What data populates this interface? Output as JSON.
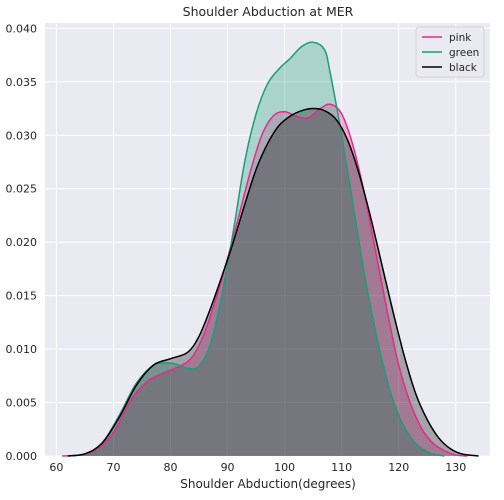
{
  "chart_data": {
    "type": "area",
    "title": "Shoulder Abduction at MER",
    "xlabel": "Shoulder Abduction(degrees)",
    "ylabel": "",
    "xlim": [
      58,
      136
    ],
    "ylim": [
      0,
      0.0405
    ],
    "xticks": [
      60,
      70,
      80,
      90,
      100,
      110,
      120,
      130
    ],
    "xtick_labels": [
      "60",
      "70",
      "80",
      "90",
      "100",
      "110",
      "120",
      "130"
    ],
    "yticks": [
      0,
      0.005,
      0.01,
      0.015,
      0.02,
      0.025,
      0.03,
      0.035,
      0.04
    ],
    "ytick_labels": [
      "0.000",
      "0.005",
      "0.010",
      "0.015",
      "0.020",
      "0.025",
      "0.030",
      "0.035",
      "0.040"
    ],
    "grid": true,
    "legend_position": "top-right",
    "background_color": "#eaeaf2",
    "series": [
      {
        "name": "pink",
        "color": "#e7298a",
        "points": [
          [
            61,
            0.0
          ],
          [
            64,
            0.0001
          ],
          [
            67,
            0.0006
          ],
          [
            70,
            0.0022
          ],
          [
            73,
            0.0052
          ],
          [
            76,
            0.007
          ],
          [
            79,
            0.0078
          ],
          [
            82,
            0.0085
          ],
          [
            84,
            0.0094
          ],
          [
            86,
            0.0116
          ],
          [
            88,
            0.0148
          ],
          [
            90,
            0.0185
          ],
          [
            92,
            0.0225
          ],
          [
            94,
            0.0266
          ],
          [
            96,
            0.03
          ],
          [
            98,
            0.0318
          ],
          [
            100,
            0.0322
          ],
          [
            102,
            0.0318
          ],
          [
            104,
            0.0316
          ],
          [
            106,
            0.0324
          ],
          [
            108,
            0.0329
          ],
          [
            110,
            0.032
          ],
          [
            112,
            0.029
          ],
          [
            114,
            0.0245
          ],
          [
            116,
            0.019
          ],
          [
            118,
            0.0135
          ],
          [
            120,
            0.0085
          ],
          [
            122,
            0.005
          ],
          [
            124,
            0.0026
          ],
          [
            126,
            0.0012
          ],
          [
            128,
            0.0005
          ],
          [
            130,
            0.0001
          ],
          [
            132,
            0.0
          ]
        ]
      },
      {
        "name": "green",
        "color": "#1b9e77",
        "points": [
          [
            62,
            0.0
          ],
          [
            65,
            0.0002
          ],
          [
            68,
            0.0012
          ],
          [
            71,
            0.0038
          ],
          [
            74,
            0.0068
          ],
          [
            77,
            0.0085
          ],
          [
            79,
            0.0087
          ],
          [
            81,
            0.0086
          ],
          [
            83,
            0.0082
          ],
          [
            85,
            0.0084
          ],
          [
            87,
            0.0105
          ],
          [
            89,
            0.015
          ],
          [
            91,
            0.021
          ],
          [
            93,
            0.0275
          ],
          [
            95,
            0.032
          ],
          [
            97,
            0.0348
          ],
          [
            99,
            0.0362
          ],
          [
            101,
            0.0372
          ],
          [
            103,
            0.0383
          ],
          [
            105,
            0.0387
          ],
          [
            107,
            0.038
          ],
          [
            108,
            0.0358
          ],
          [
            110,
            0.03
          ],
          [
            112,
            0.0235
          ],
          [
            114,
            0.017
          ],
          [
            116,
            0.0115
          ],
          [
            118,
            0.007
          ],
          [
            120,
            0.0038
          ],
          [
            122,
            0.0018
          ],
          [
            124,
            0.0007
          ],
          [
            126,
            0.0002
          ],
          [
            128,
            0.0
          ]
        ]
      },
      {
        "name": "black",
        "color": "#000000",
        "points": [
          [
            62,
            0.0
          ],
          [
            65,
            0.0002
          ],
          [
            68,
            0.0012
          ],
          [
            71,
            0.0036
          ],
          [
            74,
            0.0066
          ],
          [
            77,
            0.0085
          ],
          [
            80,
            0.0091
          ],
          [
            83,
            0.0097
          ],
          [
            85,
            0.0112
          ],
          [
            87,
            0.0138
          ],
          [
            89,
            0.0168
          ],
          [
            91,
            0.02
          ],
          [
            93,
            0.0235
          ],
          [
            95,
            0.0268
          ],
          [
            97,
            0.0292
          ],
          [
            99,
            0.0309
          ],
          [
            101,
            0.0318
          ],
          [
            103,
            0.0323
          ],
          [
            105,
            0.0325
          ],
          [
            107,
            0.0323
          ],
          [
            109,
            0.0315
          ],
          [
            111,
            0.0296
          ],
          [
            113,
            0.0265
          ],
          [
            115,
            0.0225
          ],
          [
            117,
            0.018
          ],
          [
            119,
            0.0135
          ],
          [
            121,
            0.0093
          ],
          [
            123,
            0.0058
          ],
          [
            125,
            0.0034
          ],
          [
            127,
            0.0017
          ],
          [
            129,
            0.0007
          ],
          [
            131,
            0.0002
          ],
          [
            134,
            0.0
          ]
        ]
      }
    ]
  }
}
